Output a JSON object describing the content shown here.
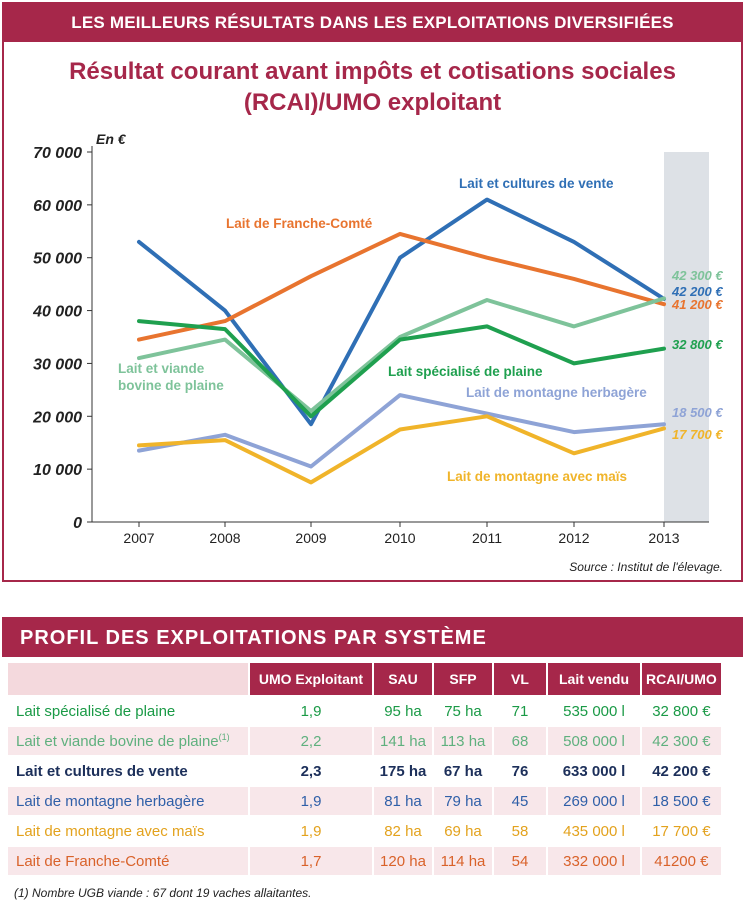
{
  "top_banner": "LES MEILLEURS RÉSULTATS DANS LES EXPLOITATIONS DIVERSIFIÉES",
  "chart_data": {
    "type": "line",
    "title": "Résultat courant avant impôts et cotisations sociales (RCAI)/UMO exploitant",
    "title_lines": [
      "Résultat courant avant impôts et cotisations sociales",
      "(RCAI)/UMO exploitant"
    ],
    "ylabel": "En €",
    "y_ticks": [
      "70 000",
      "60 000",
      "50 000",
      "40 000",
      "30 000",
      "20 000",
      "10 000",
      "0"
    ],
    "ylim": [
      0,
      70000
    ],
    "categories": [
      "2007",
      "2008",
      "2009",
      "2010",
      "2011",
      "2012",
      "2013"
    ],
    "highlight_category": "2013",
    "series": [
      {
        "name": "Lait et cultures de vente",
        "color": "#2f6fb5",
        "values": [
          53000,
          40000,
          18500,
          50000,
          61000,
          53000,
          42200
        ],
        "end_label": "42 200 €"
      },
      {
        "name": "Lait de Franche-Comté",
        "color": "#e8742f",
        "values": [
          34500,
          38000,
          46500,
          54500,
          50000,
          46000,
          41200
        ],
        "end_label": "41 200 €"
      },
      {
        "name": "Lait et viande bovine de plaine",
        "color": "#7ec39a",
        "values": [
          31000,
          34500,
          21000,
          35000,
          42000,
          37000,
          42300
        ],
        "end_label": "42 300 €"
      },
      {
        "name": "Lait spécialisé de plaine",
        "color": "#1fa04f",
        "values": [
          38000,
          36500,
          20000,
          34500,
          37000,
          30000,
          32800
        ],
        "end_label": "32 800 €"
      },
      {
        "name": "Lait de montagne herbagère",
        "color": "#8ea3d6",
        "values": [
          13500,
          16500,
          10500,
          24000,
          20500,
          17000,
          18500
        ],
        "end_label": "18 500 €"
      },
      {
        "name": "Lait de montagne avec maïs",
        "color": "#f0b42a",
        "values": [
          14500,
          15500,
          7500,
          17500,
          20000,
          13000,
          17700
        ],
        "end_label": "17 700 €"
      }
    ],
    "series_labels": {
      "s0": "Lait et cultures de vente",
      "s1": "Lait de Franche-Comté",
      "s2a": "Lait et viande",
      "s2b": "bovine de plaine",
      "s3": "Lait spécialisé de plaine",
      "s4": "Lait de montagne herbagère",
      "s5": "Lait de montagne avec maïs"
    },
    "grid": false
  },
  "source": "Source : Institut de l'élevage.",
  "table": {
    "title": "PROFIL DES EXPLOITATIONS PAR SYSTÈME",
    "headers": [
      "UMO Exploitant",
      "SAU",
      "SFP",
      "VL",
      "Lait vendu",
      "RCAI/UMO"
    ],
    "rows": [
      {
        "name": "Lait spécialisé de plaine",
        "sup": "",
        "color": "#1a9a46",
        "cells": [
          "1,9",
          "95 ha",
          "75 ha",
          "71",
          "535 000 l",
          "32 800 €"
        ]
      },
      {
        "name": "Lait et viande bovine de plaine",
        "sup": "(1)",
        "color": "#5fb07e",
        "cells": [
          "2,2",
          "141 ha",
          "113 ha",
          "68",
          "508 000 l",
          "42 300 €"
        ]
      },
      {
        "name": "Lait et cultures de vente",
        "sup": "",
        "color": "#1c2f5a",
        "cells": [
          "2,3",
          "175 ha",
          "67 ha",
          "76",
          "633 000 l",
          "42 200 €"
        ]
      },
      {
        "name": "Lait de montagne herbagère",
        "sup": "",
        "color": "#2f5fa8",
        "cells": [
          "1,9",
          "81 ha",
          "79 ha",
          "45",
          "269 000 l",
          "18 500 €"
        ]
      },
      {
        "name": "Lait de montagne avec maïs",
        "sup": "",
        "color": "#e3a21d",
        "cells": [
          "1,9",
          "82 ha",
          "69 ha",
          "58",
          "435 000 l",
          "17 700 €"
        ]
      },
      {
        "name": "Lait de Franche-Comté",
        "sup": "",
        "color": "#d9622a",
        "cells": [
          "1,7",
          "120 ha",
          "114 ha",
          "54",
          "332 000 l",
          "41200 €"
        ]
      }
    ],
    "footnote": "(1) Nombre UGB viande : 67 dont 19 vaches allaitantes."
  }
}
